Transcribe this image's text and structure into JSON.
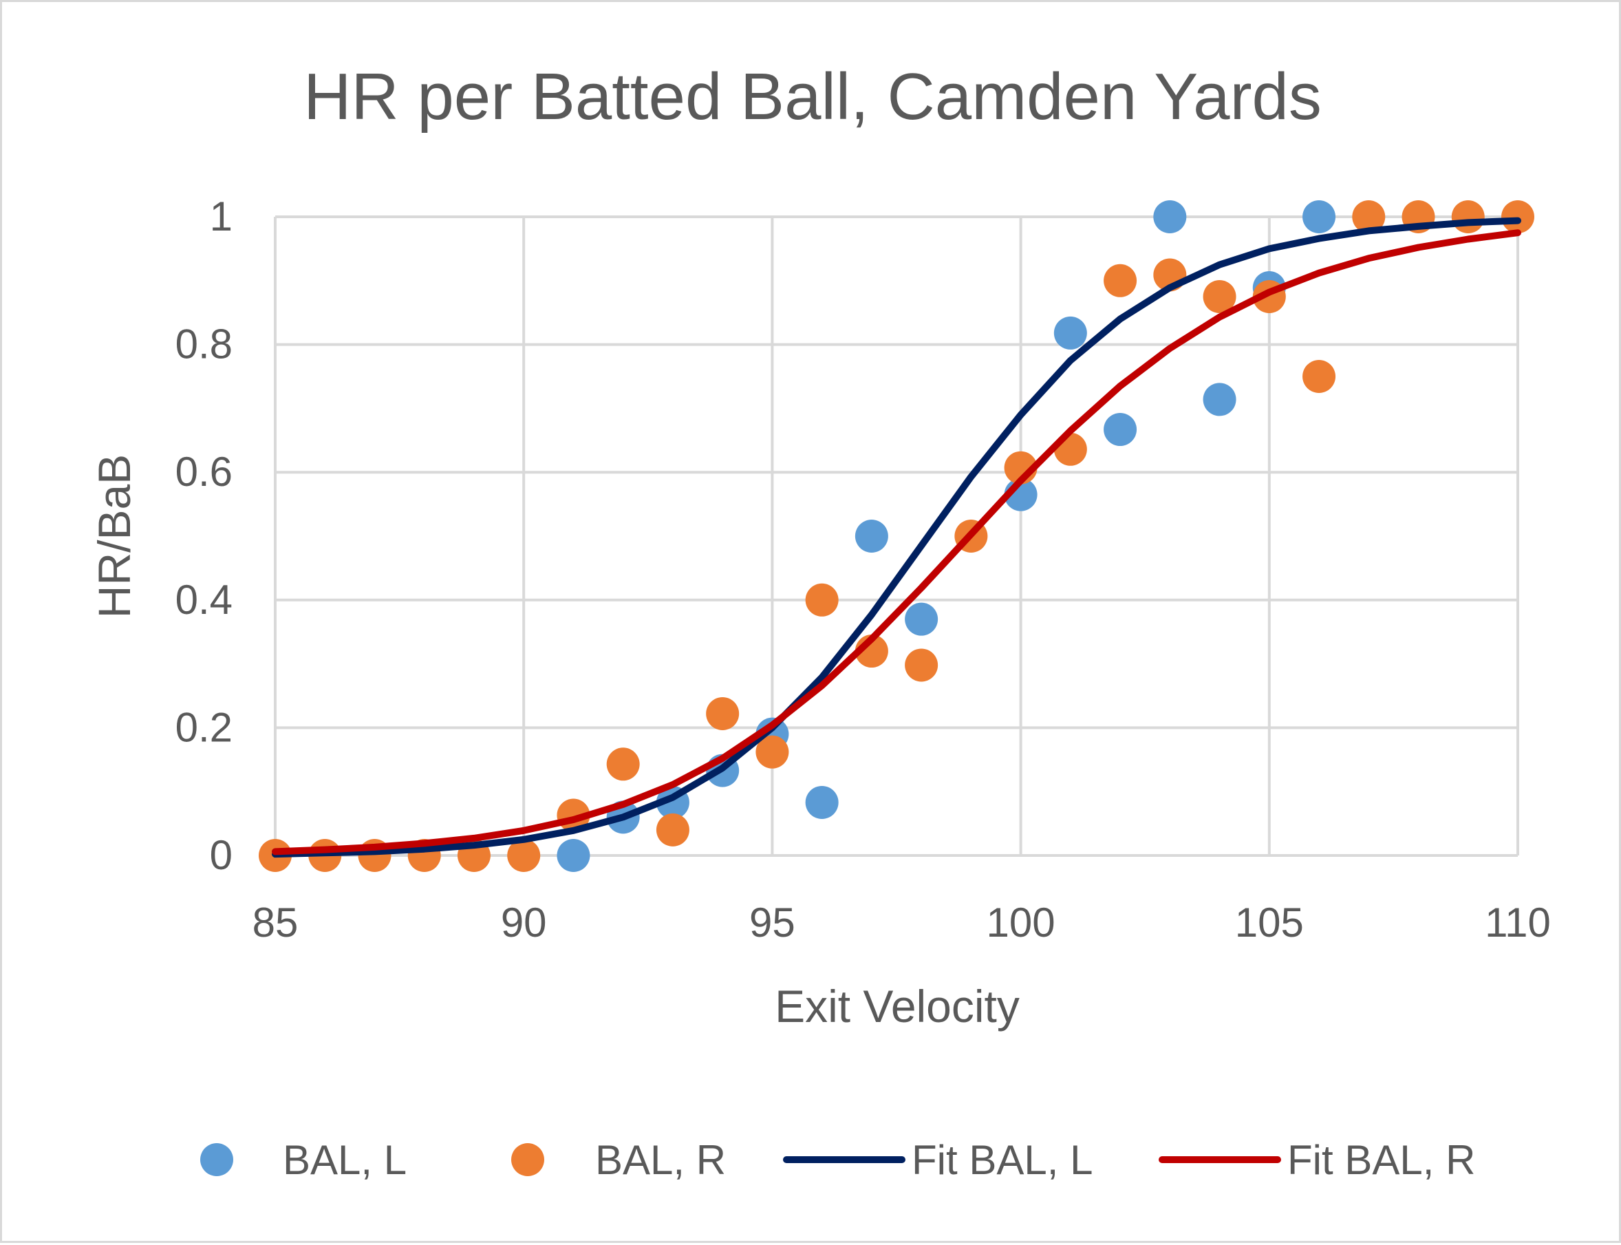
{
  "chart_data": {
    "type": "scatter",
    "title": "HR per Batted Ball, Camden Yards",
    "xlabel": "Exit Velocity",
    "ylabel": "HR/BaB",
    "xlim": [
      85,
      110
    ],
    "ylim": [
      0,
      1
    ],
    "x_ticks": [
      85,
      90,
      95,
      100,
      105,
      110
    ],
    "y_ticks": [
      0,
      0.2,
      0.4,
      0.6,
      0.8,
      1
    ],
    "x_tick_labels": [
      "85",
      "90",
      "95",
      "100",
      "105",
      "110"
    ],
    "y_tick_labels": [
      "0",
      "0.2",
      "0.4",
      "0.6",
      "0.8",
      "1"
    ],
    "grid": true,
    "legend_position": "bottom",
    "series": [
      {
        "name": "BAL, L",
        "kind": "scatter",
        "color": "#5b9bd5",
        "x": [
          91,
          92,
          93,
          94,
          95,
          96,
          97,
          98,
          100,
          101,
          102,
          103,
          104,
          105,
          106
        ],
        "y": [
          0,
          0.06,
          0.083,
          0.133,
          0.19,
          0.083,
          0.5,
          0.37,
          0.565,
          0.818,
          0.667,
          1,
          0.714,
          0.889,
          1
        ]
      },
      {
        "name": "BAL, R",
        "kind": "scatter",
        "color": "#ed7d31",
        "x": [
          85,
          86,
          87,
          88,
          89,
          90,
          91,
          92,
          93,
          94,
          95,
          96,
          97,
          98,
          99,
          100,
          101,
          102,
          103,
          104,
          105,
          106,
          107,
          108,
          109,
          110
        ],
        "y": [
          0,
          0,
          0,
          0,
          0,
          0,
          0.063,
          0.143,
          0.04,
          0.222,
          0.162,
          0.4,
          0.32,
          0.298,
          0.5,
          0.607,
          0.636,
          0.9,
          0.909,
          0.875,
          0.875,
          0.75,
          1,
          1,
          1,
          1
        ]
      },
      {
        "name": "Fit BAL, L",
        "kind": "line",
        "color": "#002060",
        "x": [
          85,
          86,
          87,
          88,
          89,
          90,
          91,
          92,
          93,
          94,
          95,
          96,
          97,
          98,
          99,
          100,
          101,
          102,
          103,
          104,
          105,
          106,
          107,
          108,
          109,
          110
        ],
        "y": [
          0.002,
          0.004,
          0.006,
          0.01,
          0.016,
          0.025,
          0.039,
          0.06,
          0.091,
          0.137,
          0.2,
          0.279,
          0.377,
          0.485,
          0.593,
          0.69,
          0.775,
          0.84,
          0.889,
          0.925,
          0.95,
          0.966,
          0.978,
          0.985,
          0.991,
          0.994
        ]
      },
      {
        "name": "Fit BAL, R",
        "kind": "line",
        "color": "#c00000",
        "x": [
          85,
          86,
          87,
          88,
          89,
          90,
          91,
          92,
          93,
          94,
          95,
          96,
          97,
          98,
          99,
          100,
          101,
          102,
          103,
          104,
          105,
          106,
          107,
          108,
          109,
          110
        ],
        "y": [
          0.006,
          0.009,
          0.013,
          0.019,
          0.027,
          0.039,
          0.056,
          0.08,
          0.111,
          0.152,
          0.204,
          0.266,
          0.339,
          0.419,
          0.503,
          0.587,
          0.665,
          0.735,
          0.794,
          0.843,
          0.882,
          0.912,
          0.935,
          0.952,
          0.965,
          0.975
        ]
      }
    ]
  }
}
